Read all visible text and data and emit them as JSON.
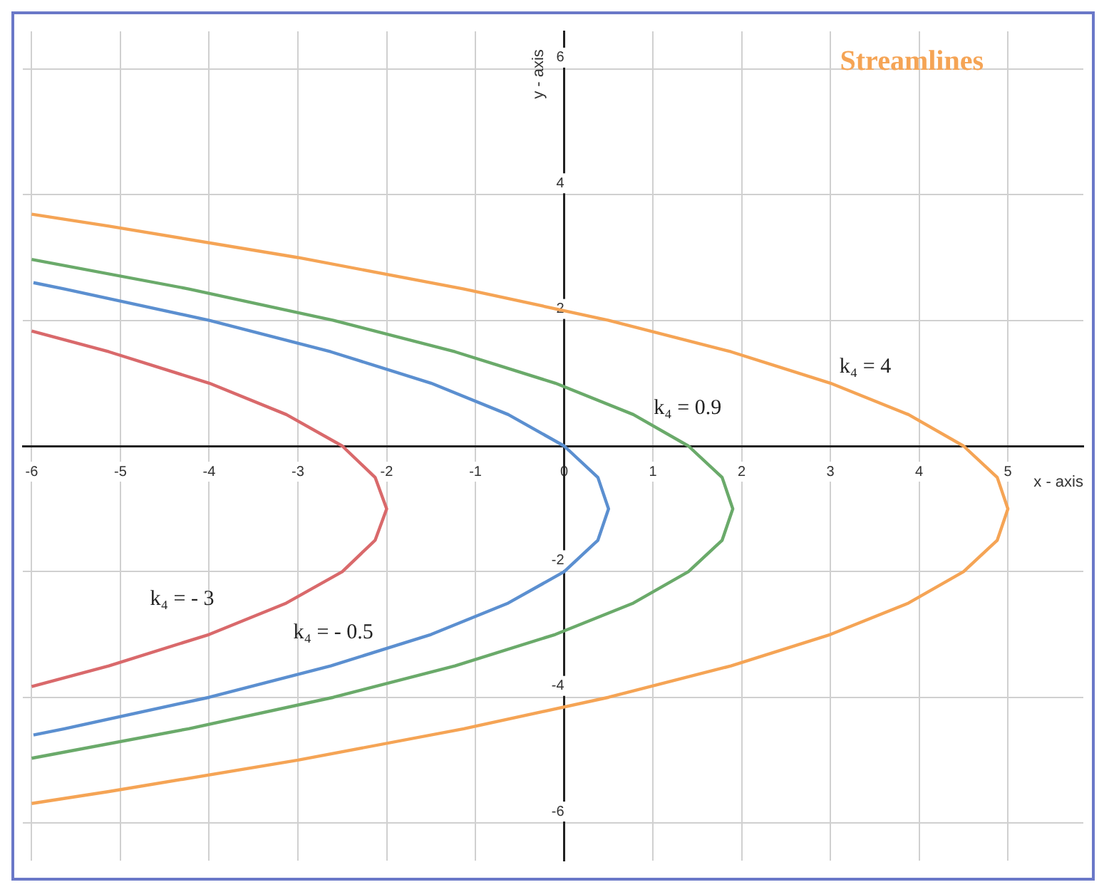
{
  "chart_data": {
    "type": "line",
    "title": "Streamlines",
    "xlabel": "x - axis",
    "ylabel": "y - axis",
    "xlim": [
      -6.1,
      5.85
    ],
    "ylim": [
      -6.6,
      6.6
    ],
    "xticks": [
      -6,
      -5,
      -4,
      -3,
      -2,
      -1,
      0,
      1,
      2,
      3,
      4,
      5
    ],
    "yticks": [
      -6,
      -4,
      -2,
      2,
      4,
      6
    ],
    "grid": true,
    "legend": false,
    "marker": "none",
    "line_style": "solid",
    "series": [
      {
        "color": "#d9696b",
        "x": [
          -6.0,
          -5.13,
          -4,
          -3.13,
          -2.5,
          -2.13,
          -2,
          -2.13,
          -2.5,
          -3.13,
          -4,
          -5.13,
          -6.0
        ],
        "values": [
          -3.83,
          -3.5,
          -3,
          -2.5,
          -2,
          -1.5,
          -1,
          -0.5,
          0,
          0.5,
          1,
          1.5,
          1.83
        ]
      },
      {
        "color": "#5b8fd0",
        "x": [
          -5.98,
          -5.63,
          -4,
          -2.63,
          -1.5,
          -0.63,
          0,
          0.38,
          0.5,
          0.38,
          0,
          -0.63,
          -1.5,
          -2.63,
          -4,
          -5.63,
          -5.98
        ],
        "values": [
          -4.6,
          -4.5,
          -4,
          -3.5,
          -3,
          -2.5,
          -2,
          -1.5,
          -1,
          -0.5,
          0,
          0.5,
          1,
          1.5,
          2,
          2.5,
          2.6
        ]
      },
      {
        "color": "#6aaa6a",
        "x": [
          -6.0,
          -4.23,
          -2.6,
          -1.23,
          -0.1,
          0.78,
          1.4,
          1.78,
          1.9,
          1.78,
          1.4,
          0.78,
          -0.1,
          -1.23,
          -2.6,
          -4.23,
          -6.0
        ],
        "values": [
          -4.97,
          -4.5,
          -4,
          -3.5,
          -3,
          -2.5,
          -2,
          -1.5,
          -1,
          -0.5,
          0,
          0.5,
          1,
          1.5,
          2,
          2.5,
          2.97
        ]
      },
      {
        "color": "#f5a455",
        "x": [
          -6.0,
          -5.13,
          -3,
          -1.13,
          0.5,
          1.88,
          3,
          3.88,
          4.5,
          4.88,
          5,
          4.88,
          4.5,
          3.88,
          3,
          1.88,
          0.5,
          -1.13,
          -3,
          -5.13,
          -6.0
        ],
        "values": [
          -5.69,
          -5.5,
          -5,
          -4.5,
          -4,
          -3.5,
          -3,
          -2.5,
          -2,
          -1.5,
          -1,
          -0.5,
          0,
          0.5,
          1,
          1.5,
          2,
          2.5,
          3,
          3.5,
          3.69
        ]
      }
    ],
    "annotations": [
      "k₄ = - 3",
      "k₄ = - 0.5",
      "k₄ = 0.9",
      "k₄ = 4"
    ]
  }
}
